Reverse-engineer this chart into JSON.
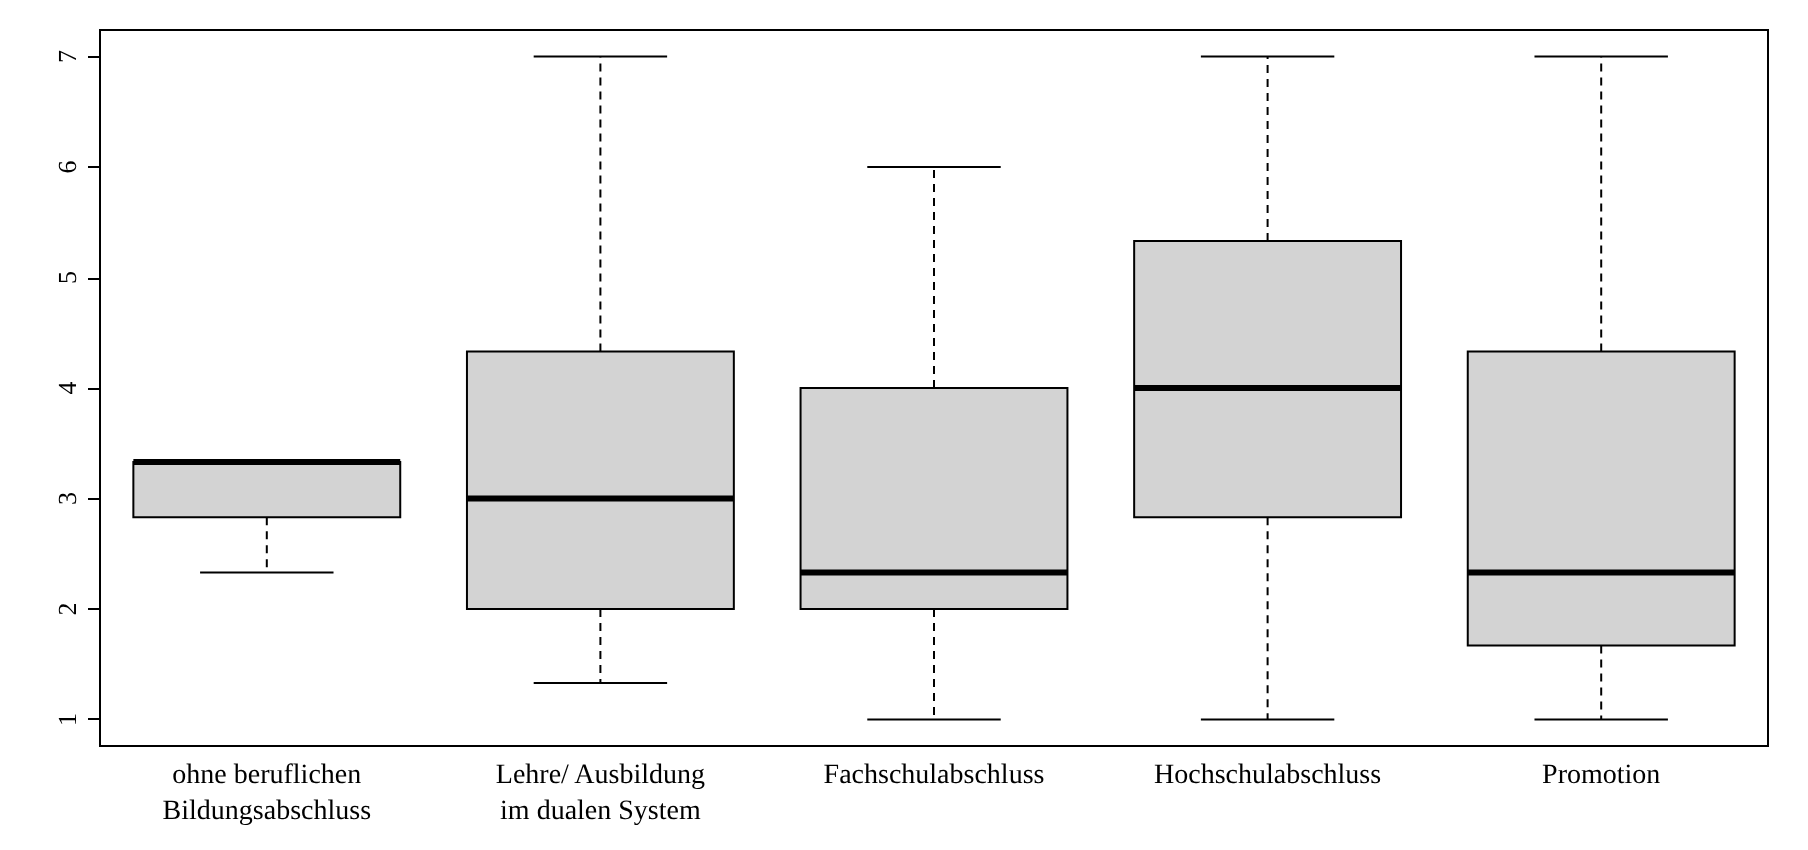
{
  "chart_data": {
    "type": "box",
    "categories": [
      "ohne beruflichen\nBildungsabschluss",
      "Lehre/ Ausbildung\nim dualen System",
      "Fachschulabschluss",
      "Hochschulabschluss",
      "Promotion"
    ],
    "series": [
      {
        "color": "#d3d3d3",
        "boxes": [
          {
            "low": 2.33,
            "q1": 2.83,
            "median": 3.33,
            "q3": 3.33,
            "high": 3.33
          },
          {
            "low": 1.33,
            "q1": 2,
            "median": 3,
            "q3": 4.33,
            "high": 7
          },
          {
            "low": 1,
            "q1": 2,
            "median": 2.33,
            "q3": 4,
            "high": 6
          },
          {
            "low": 1,
            "q1": 2.83,
            "median": 4,
            "q3": 5.33,
            "high": 7
          },
          {
            "low": 1,
            "q1": 1.67,
            "median": 2.33,
            "q3": 4.33,
            "high": 7
          }
        ]
      }
    ],
    "ylim": [
      0.76,
      7.24
    ],
    "yticks": [
      1,
      2,
      3,
      4,
      5,
      6,
      7
    ]
  }
}
